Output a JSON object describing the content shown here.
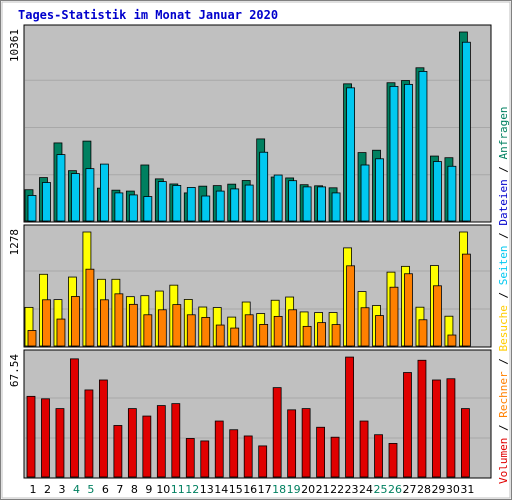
{
  "chart_data": {
    "type": "bar",
    "title": "Tages-Statistik im Monat Januar 2020",
    "categories": [
      "1",
      "2",
      "3",
      "4",
      "5",
      "6",
      "7",
      "8",
      "9",
      "10",
      "11",
      "12",
      "13",
      "14",
      "15",
      "16",
      "17",
      "18",
      "19",
      "20",
      "21",
      "22",
      "23",
      "24",
      "25",
      "26",
      "27",
      "28",
      "29",
      "30",
      "31"
    ],
    "weekend_days": [
      "4",
      "5",
      "11",
      "12",
      "18",
      "19",
      "25",
      "26"
    ],
    "panels": [
      {
        "name": "top",
        "ymax_label": "10361",
        "ylim": [
          0,
          10361
        ],
        "grid": true,
        "series": [
          {
            "name": "Anfragen",
            "color": "#008060",
            "values": [
              1715,
              2380,
              4280,
              2760,
              4380,
              1800,
              1690,
              1640,
              3070,
              2310,
              2030,
              1540,
              1910,
              1940,
              2020,
              2220,
              4500,
              2410,
              2360,
              1990,
              1930,
              1820,
              7520,
              3750,
              3880,
              7580,
              7700,
              8400,
              3560,
              3470,
              10400
            ]
          },
          {
            "name": "Dateien",
            "color": "#00c8f0",
            "values": [
              1400,
              2110,
              3640,
              2600,
              2870,
              3120,
              1540,
              1430,
              1340,
              2160,
              1950,
              1840,
              1370,
              1640,
              1760,
              1970,
              3770,
              2520,
              2210,
              1870,
              1870,
              1540,
              7300,
              3070,
              3410,
              7380,
              7490,
              8200,
              3260,
              3000,
              9800
            ]
          }
        ]
      },
      {
        "name": "middle",
        "ymax_label": "1278",
        "ylim": [
          0,
          1278
        ],
        "grid": true,
        "series": [
          {
            "name": "Besuche",
            "color": "#ffff00",
            "values": [
              433,
              804,
              520,
              773,
              1290,
              748,
              748,
              553,
              564,
              616,
              682,
              522,
              437,
              431,
              324,
              493,
              364,
              513,
              549,
              382,
              375,
              375,
              1100,
              610,
              454,
              828,
              893,
              435,
              902,
              334,
              1290
            ]
          },
          {
            "name": "Seiten",
            "color": "#ff8000",
            "values": [
              174,
              518,
              302,
              555,
              861,
              518,
              585,
              467,
              350,
              406,
              464,
              350,
              320,
              235,
              201,
              350,
              242,
              332,
              406,
              220,
              262,
              240,
              899,
              429,
              341,
              659,
              810,
              294,
              675,
              123,
              1030
            ]
          }
        ]
      },
      {
        "name": "bottom",
        "ymax_label": "67.54",
        "ylim": [
          0,
          67.54
        ],
        "grid": true,
        "series": [
          {
            "name": "Volumen",
            "color": "#e00000",
            "values": [
              45.4,
              44,
              38.5,
              66.5,
              49,
              54.6,
              29,
              38.5,
              34.3,
              40.2,
              41.3,
              21.7,
              20.3,
              31.5,
              26.6,
              23.1,
              17.5,
              50.3,
              37.8,
              38.5,
              28,
              22.4,
              67.5,
              31.5,
              23.8,
              18.9,
              58.8,
              65.7,
              54.6,
              55.3,
              38.5
            ]
          }
        ]
      }
    ],
    "right_legend": [
      {
        "text": "Volumen",
        "color": "#e00000"
      },
      {
        "text": " / ",
        "color": "#000000"
      },
      {
        "text": "Rechner",
        "color": "#ff8000"
      },
      {
        "text": " / ",
        "color": "#000000"
      },
      {
        "text": "Besuche",
        "color": "#ffcc00"
      },
      {
        "text": " / ",
        "color": "#000000"
      },
      {
        "text": "Seiten",
        "color": "#00c8f0"
      },
      {
        "text": " / ",
        "color": "#000000"
      },
      {
        "text": "Dateien",
        "color": "#0000cc"
      },
      {
        "text": " / ",
        "color": "#000000"
      },
      {
        "text": "Anfragen",
        "color": "#008060"
      }
    ],
    "colors": {
      "title": "#0000cc",
      "plot_bg": "#c0c0c0",
      "weekend_label": "#008060",
      "weekday_label": "#000000"
    }
  }
}
